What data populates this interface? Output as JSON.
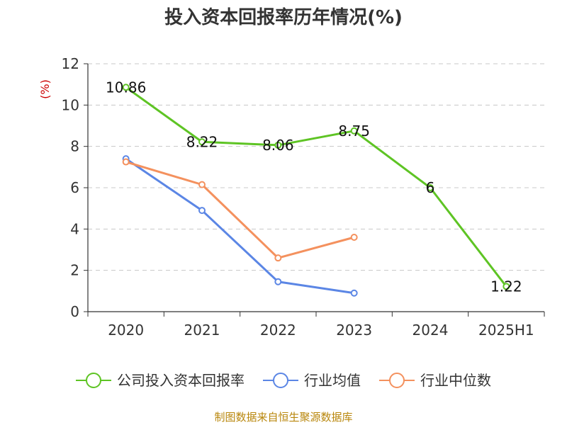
{
  "chart_data": {
    "type": "line",
    "title": "投入资本回报率历年情况(%)",
    "ylabel": "(%)",
    "categories": [
      "2020",
      "2021",
      "2022",
      "2023",
      "2024",
      "2025H1"
    ],
    "ylim": [
      0,
      12
    ],
    "yticks": [
      0,
      2,
      4,
      6,
      8,
      10,
      12
    ],
    "grid": true,
    "legend_position": "bottom",
    "series": [
      {
        "name": "公司投入资本回报率",
        "color": "#5ec424",
        "values": [
          10.86,
          8.22,
          8.06,
          8.75,
          6,
          1.22
        ],
        "labels": [
          "10.86",
          "8.22",
          "8.06",
          "8.75",
          "6",
          "1.22"
        ],
        "show_labels": true
      },
      {
        "name": "行业均值",
        "color": "#5b86e5",
        "values": [
          7.4,
          4.9,
          1.45,
          0.9,
          null,
          null
        ],
        "show_labels": false
      },
      {
        "name": "行业中位数",
        "color": "#f4915e",
        "values": [
          7.25,
          6.15,
          2.6,
          3.6,
          null,
          null
        ],
        "show_labels": false
      }
    ]
  },
  "source": "制图数据来自恒生聚源数据库"
}
